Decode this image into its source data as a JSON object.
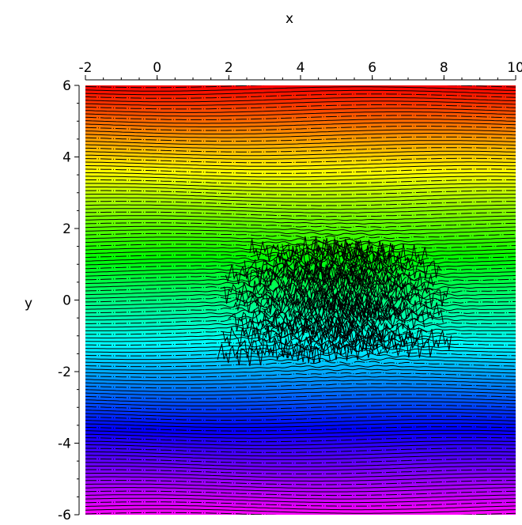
{
  "chart_data": {
    "type": "heatmap",
    "subtype": "contour",
    "title": "",
    "xlabel": "x",
    "ylabel": "y",
    "xlim": [
      -2,
      10
    ],
    "ylim": [
      -6,
      6
    ],
    "x_axis_position": "top",
    "x_ticks": [
      -2,
      0,
      2,
      4,
      6,
      8,
      10
    ],
    "x_tick_labels": [
      "-2",
      "0",
      "2",
      "4",
      "6",
      "8",
      "10"
    ],
    "y_ticks": [
      6,
      4,
      2,
      0,
      -2,
      -4,
      -6
    ],
    "y_tick_labels": [
      "6",
      "4",
      "2",
      "0",
      "-2",
      "-4",
      "-6"
    ],
    "grid": false,
    "legend": "none",
    "colormap": [
      "#ff00ff",
      "#0000ff",
      "#00ffff",
      "#00ff00",
      "#ffff00",
      "#ff0000"
    ],
    "contour_line_color": "#000000",
    "dense_region": {
      "x": [
        2.5,
        7.5
      ],
      "y": [
        -1.5,
        1.5
      ]
    }
  }
}
